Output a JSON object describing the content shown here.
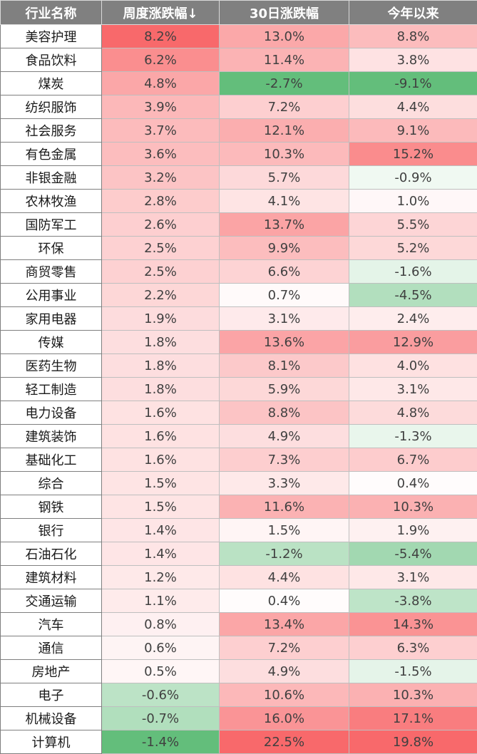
{
  "headers": [
    "行业名称",
    "周度涨跌幅↓",
    "30日涨跌幅",
    "今年以来"
  ],
  "rows": [
    {
      "name": "美容护理",
      "weekly": "8.2%",
      "d30": "13.0%",
      "ytd": "8.8%"
    },
    {
      "name": "食品饮料",
      "weekly": "6.2%",
      "d30": "11.4%",
      "ytd": "3.8%"
    },
    {
      "name": "煤炭",
      "weekly": "4.8%",
      "d30": "-2.7%",
      "ytd": "-9.1%"
    },
    {
      "name": "纺织服饰",
      "weekly": "3.9%",
      "d30": "7.2%",
      "ytd": "4.4%"
    },
    {
      "name": "社会服务",
      "weekly": "3.7%",
      "d30": "12.1%",
      "ytd": "9.1%"
    },
    {
      "name": "有色金属",
      "weekly": "3.6%",
      "d30": "10.3%",
      "ytd": "15.2%"
    },
    {
      "name": "非银金融",
      "weekly": "3.2%",
      "d30": "5.7%",
      "ytd": "-0.9%"
    },
    {
      "name": "农林牧渔",
      "weekly": "2.8%",
      "d30": "4.1%",
      "ytd": "1.0%"
    },
    {
      "name": "国防军工",
      "weekly": "2.6%",
      "d30": "13.7%",
      "ytd": "5.5%"
    },
    {
      "name": "环保",
      "weekly": "2.5%",
      "d30": "9.9%",
      "ytd": "5.2%"
    },
    {
      "name": "商贸零售",
      "weekly": "2.5%",
      "d30": "6.6%",
      "ytd": "-1.6%"
    },
    {
      "name": "公用事业",
      "weekly": "2.2%",
      "d30": "0.7%",
      "ytd": "-4.5%"
    },
    {
      "name": "家用电器",
      "weekly": "1.9%",
      "d30": "3.1%",
      "ytd": "2.4%"
    },
    {
      "name": "传媒",
      "weekly": "1.8%",
      "d30": "13.6%",
      "ytd": "12.9%"
    },
    {
      "name": "医药生物",
      "weekly": "1.8%",
      "d30": "8.1%",
      "ytd": "4.0%"
    },
    {
      "name": "轻工制造",
      "weekly": "1.8%",
      "d30": "5.9%",
      "ytd": "3.1%"
    },
    {
      "name": "电力设备",
      "weekly": "1.6%",
      "d30": "8.8%",
      "ytd": "4.8%"
    },
    {
      "name": "建筑装饰",
      "weekly": "1.6%",
      "d30": "4.9%",
      "ytd": "-1.3%"
    },
    {
      "name": "基础化工",
      "weekly": "1.6%",
      "d30": "7.3%",
      "ytd": "6.7%"
    },
    {
      "name": "综合",
      "weekly": "1.5%",
      "d30": "3.3%",
      "ytd": "0.4%"
    },
    {
      "name": "钢铁",
      "weekly": "1.5%",
      "d30": "11.6%",
      "ytd": "10.3%"
    },
    {
      "name": "银行",
      "weekly": "1.4%",
      "d30": "1.5%",
      "ytd": "1.9%"
    },
    {
      "name": "石油石化",
      "weekly": "1.4%",
      "d30": "-1.2%",
      "ytd": "-5.4%"
    },
    {
      "name": "建筑材料",
      "weekly": "1.2%",
      "d30": "4.4%",
      "ytd": "3.1%"
    },
    {
      "name": "交通运输",
      "weekly": "1.1%",
      "d30": "0.4%",
      "ytd": "-3.8%"
    },
    {
      "name": "汽车",
      "weekly": "0.8%",
      "d30": "13.4%",
      "ytd": "14.3%"
    },
    {
      "name": "通信",
      "weekly": "0.6%",
      "d30": "7.2%",
      "ytd": "6.3%"
    },
    {
      "name": "房地产",
      "weekly": "0.5%",
      "d30": "4.9%",
      "ytd": "-1.5%"
    },
    {
      "name": "电子",
      "weekly": "-0.6%",
      "d30": "10.6%",
      "ytd": "10.3%"
    },
    {
      "name": "机械设备",
      "weekly": "-0.7%",
      "d30": "16.0%",
      "ytd": "17.1%"
    },
    {
      "name": "计算机",
      "weekly": "-1.4%",
      "d30": "22.5%",
      "ytd": "19.8%"
    }
  ],
  "colors": {
    "header_bg": "#808080",
    "positive_max": "#f8696b",
    "negative_max": "#63be7b",
    "neutral": "#ffffff"
  }
}
